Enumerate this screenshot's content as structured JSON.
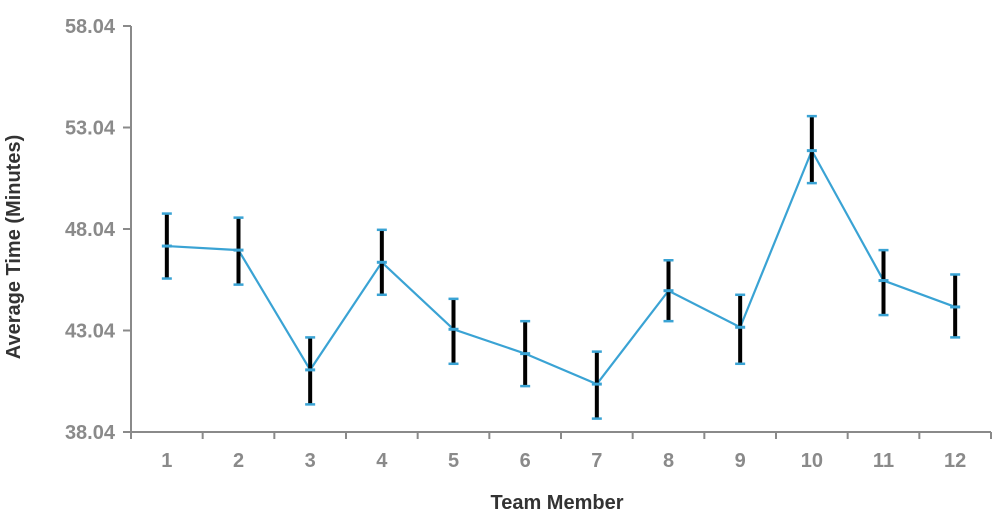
{
  "chart_data": {
    "type": "line",
    "title": "",
    "xlabel": "Team Member",
    "ylabel": "Average Time (Minutes)",
    "categories": [
      "1",
      "2",
      "3",
      "4",
      "5",
      "6",
      "7",
      "8",
      "9",
      "10",
      "11",
      "12"
    ],
    "series": [
      {
        "values": [
          47.2,
          47.0,
          41.1,
          46.4,
          43.1,
          41.9,
          40.4,
          45.0,
          43.2,
          51.9,
          45.5,
          44.2
        ],
        "error_low": [
          45.6,
          45.3,
          39.4,
          44.8,
          41.4,
          40.3,
          38.7,
          43.5,
          41.4,
          50.3,
          43.8,
          42.7
        ],
        "error_high": [
          48.8,
          48.6,
          42.7,
          48.0,
          44.6,
          43.5,
          42.0,
          46.5,
          44.8,
          53.6,
          47.0,
          45.8
        ]
      }
    ],
    "ylim": [
      38.04,
      58.04
    ],
    "yticks": [
      "38.04",
      "43.04",
      "48.04",
      "53.04",
      "58.04"
    ],
    "grid": false,
    "colors": {
      "line": "#3aa3d4",
      "error_bar": "#000000",
      "axis": "#8a8a8a"
    }
  }
}
